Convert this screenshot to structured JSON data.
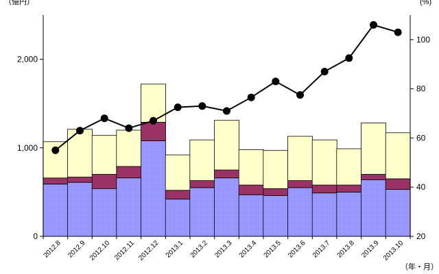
{
  "chart_data": {
    "type": "bar",
    "stacked": true,
    "categories": [
      "2012.8",
      "2012.9",
      "2012.10",
      "2012.11",
      "2012.12",
      "2013.1",
      "2013.2",
      "2013.3",
      "2013.4",
      "2013.5",
      "2013.6",
      "2013.7",
      "2013.8",
      "2013.9",
      "2013.10"
    ],
    "series": [
      {
        "values": [
          590,
          610,
          540,
          660,
          1080,
          420,
          550,
          660,
          470,
          460,
          550,
          490,
          500,
          640,
          530
        ],
        "color": "#9999ff",
        "kind": "bar"
      },
      {
        "values": [
          70,
          60,
          160,
          130,
          210,
          100,
          80,
          90,
          110,
          80,
          80,
          90,
          80,
          60,
          120
        ],
        "color": "#993366",
        "kind": "bar"
      },
      {
        "values": [
          410,
          540,
          440,
          410,
          430,
          400,
          460,
          560,
          400,
          430,
          500,
          510,
          410,
          580,
          520
        ],
        "color": "#ffffcc",
        "kind": "bar"
      },
      {
        "values": [
          55,
          63,
          68,
          64,
          67,
          72.5,
          73,
          71,
          76.5,
          83,
          77.5,
          87,
          92.5,
          106,
          103
        ],
        "color": "#000000",
        "kind": "line",
        "axis": "right"
      }
    ],
    "left_axis": {
      "unit": "（億円）",
      "ylim": [
        0,
        2500
      ],
      "ticks": [
        0,
        1000,
        2000
      ],
      "tick_labels": [
        "0",
        "1,000",
        "2,000"
      ]
    },
    "right_axis": {
      "unit": "(%)",
      "ylim": [
        20,
        110
      ],
      "ticks": [
        20,
        40,
        60,
        80,
        100
      ],
      "tick_labels": [
        "20",
        "40",
        "60",
        "80",
        "100"
      ]
    },
    "x_unit": "（年・月）",
    "grid": false,
    "legend": "none"
  }
}
